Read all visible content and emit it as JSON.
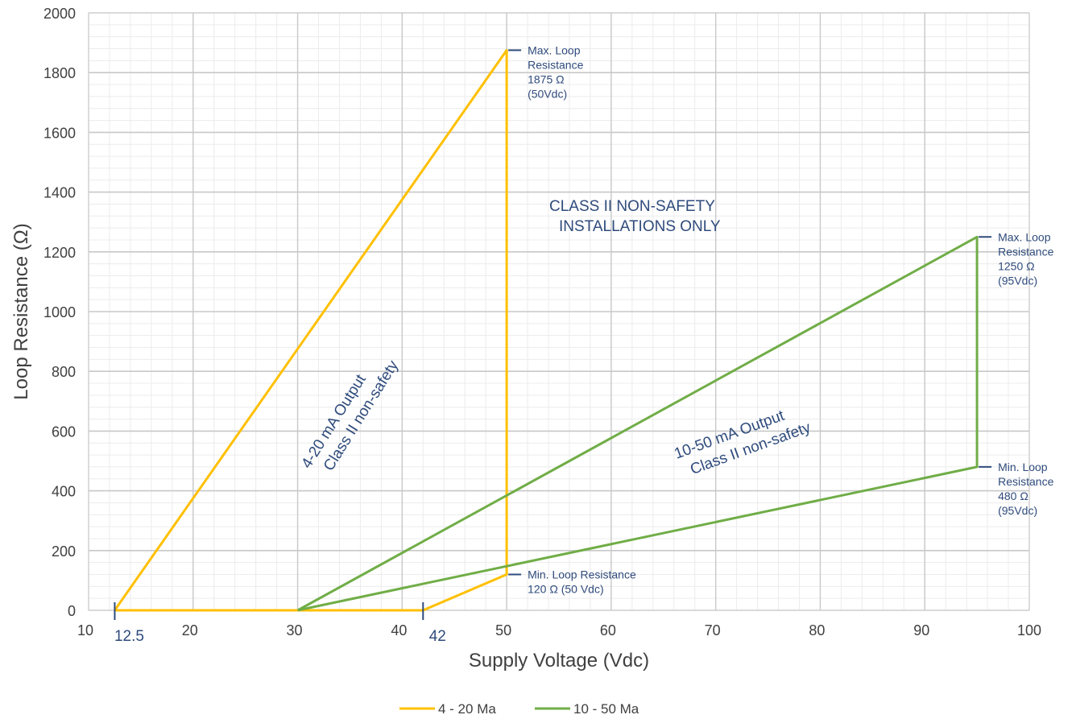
{
  "chart_data": {
    "type": "line",
    "xlabel": "Supply Voltage (Vdc)",
    "ylabel": "Loop Resistance (Ω)",
    "xlim": [
      10,
      100
    ],
    "ylim": [
      0,
      2000
    ],
    "x_ticks": [
      "10",
      "20",
      "30",
      "40",
      "50",
      "60",
      "70",
      "80",
      "90",
      "100"
    ],
    "y_ticks": [
      "0",
      "200",
      "400",
      "600",
      "800",
      "1000",
      "1200",
      "1400",
      "1600",
      "1800",
      "2000"
    ],
    "grid": true,
    "legend_position": "bottom",
    "series": [
      {
        "name": "4 - 20 Ma",
        "color": "#FFC000",
        "segments": [
          [
            [
              12.5,
              0
            ],
            [
              50,
              1875
            ],
            [
              50,
              120
            ],
            [
              42,
              0
            ],
            [
              12.5,
              0
            ]
          ]
        ]
      },
      {
        "name": "10 - 50 Ma",
        "color": "#70AD47",
        "segments": [
          [
            [
              30,
              0
            ],
            [
              95,
              1250
            ],
            [
              95,
              480
            ],
            [
              30,
              0
            ]
          ]
        ]
      }
    ],
    "markers": [
      {
        "x": 12.5,
        "label": "12.5"
      },
      {
        "x": 42,
        "label": "42"
      }
    ],
    "annotations": [
      {
        "id": "max-4-20",
        "x": 50,
        "y": 1875,
        "lines": [
          "Max. Loop",
          "Resistance",
          "1875 Ω",
          "(50Vdc)"
        ]
      },
      {
        "id": "min-4-20",
        "x": 50,
        "y": 120,
        "lines": [
          "Min. Loop Resistance",
          "120 Ω (50 Vdc)"
        ]
      },
      {
        "id": "max-10-50",
        "x": 95,
        "y": 1250,
        "lines": [
          "Max. Loop",
          "Resistance",
          "1250 Ω",
          "(95Vdc)"
        ]
      },
      {
        "id": "min-10-50",
        "x": 95,
        "y": 480,
        "lines": [
          "Min. Loop",
          "Resistance",
          "480 Ω",
          "(95Vdc)"
        ]
      }
    ],
    "region_labels": [
      {
        "id": "class2-note",
        "lines": [
          "CLASS II NON-SAFETY",
          "INSTALLATIONS  ONLY"
        ]
      },
      {
        "id": "label-4-20",
        "lines": [
          "4-20 mA Output",
          "Class II non-safety"
        ]
      },
      {
        "id": "label-10-50",
        "lines": [
          "10-50 mA Output",
          "Class II non-safety"
        ]
      }
    ]
  }
}
